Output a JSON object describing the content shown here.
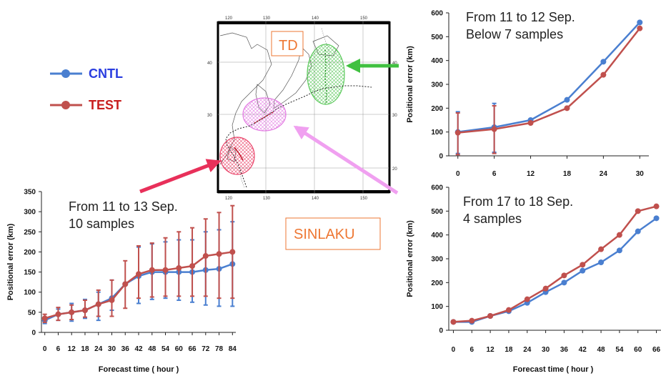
{
  "legend": {
    "items": [
      {
        "label": "CNTL",
        "color": "#4a7fd0",
        "text_color": "#2a3de0"
      },
      {
        "label": "TEST",
        "color": "#c0504d",
        "text_color": "#c81e1e"
      }
    ]
  },
  "map": {
    "lon_ticks_top": [
      "120",
      "130",
      "140",
      "150"
    ],
    "lon_ticks_bottom": [
      "120",
      "130",
      "140",
      "150"
    ],
    "lat_ticks_left": [
      "40",
      "30"
    ],
    "lat_ticks_right": [
      "40",
      "30",
      "20"
    ],
    "labels": {
      "td": "TD",
      "storm": "SINLAKU"
    },
    "colors": {
      "red_circle": "#e8305a",
      "magenta_circle": "#e070e0",
      "green_circle": "#40c040",
      "td_box": "#ee7733"
    }
  },
  "chart_data": [
    {
      "id": "chart-11-13",
      "type": "line",
      "annotation": [
        "From 11 to 13 Sep.",
        "10 samples"
      ],
      "xlabel": "Forecast time ( hour )",
      "ylabel": "Positional error (km)",
      "x": [
        0,
        6,
        12,
        18,
        24,
        30,
        36,
        42,
        48,
        54,
        60,
        66,
        72,
        78,
        84
      ],
      "ylim": [
        0,
        350
      ],
      "yticks": [
        0,
        50,
        100,
        150,
        200,
        250,
        300,
        350
      ],
      "series": [
        {
          "name": "CNTL",
          "color": "#4a7fd0",
          "values": [
            30,
            45,
            50,
            55,
            70,
            85,
            120,
            140,
            150,
            150,
            150,
            150,
            155,
            158,
            170
          ],
          "error": [
            [
              22,
              38
            ],
            [
              30,
              58
            ],
            [
              28,
              72
            ],
            [
              35,
              82
            ],
            [
              30,
              100
            ],
            [
              55,
              130
            ],
            [
              null,
              null
            ],
            [
              72,
              212
            ],
            [
              82,
              220
            ],
            [
              85,
              225
            ],
            [
              80,
              230
            ],
            [
              75,
              230
            ],
            [
              68,
              250
            ],
            [
              65,
              255
            ],
            [
              65,
              275
            ]
          ]
        },
        {
          "name": "TEST",
          "color": "#c0504d",
          "values": [
            35,
            45,
            50,
            55,
            70,
            80,
            120,
            145,
            155,
            155,
            160,
            165,
            190,
            195,
            200
          ],
          "error": [
            [
              25,
              45
            ],
            [
              30,
              62
            ],
            [
              32,
              68
            ],
            [
              38,
              80
            ],
            [
              40,
              105
            ],
            [
              40,
              130
            ],
            [
              60,
              178
            ],
            [
              85,
              215
            ],
            [
              88,
              222
            ],
            [
              90,
              235
            ],
            [
              90,
              250
            ],
            [
              90,
              260
            ],
            [
              90,
              282
            ],
            [
              85,
              298
            ],
            [
              85,
              315
            ]
          ]
        }
      ]
    },
    {
      "id": "chart-11-12",
      "type": "line",
      "annotation": [
        "From 11 to 12 Sep.",
        "Below 7 samples"
      ],
      "xlabel": "",
      "ylabel": "Positional error (km)",
      "x": [
        0,
        6,
        12,
        18,
        24,
        30
      ],
      "ylim": [
        0,
        600
      ],
      "yticks": [
        0,
        100,
        200,
        300,
        400,
        500,
        600
      ],
      "series": [
        {
          "name": "CNTL",
          "color": "#4a7fd0",
          "values": [
            100,
            120,
            150,
            235,
            395,
            560
          ],
          "error": [
            [
              10,
              185
            ],
            [
              15,
              220
            ],
            [
              null,
              null
            ],
            [
              null,
              null
            ],
            [
              null,
              null
            ],
            [
              null,
              null
            ]
          ]
        },
        {
          "name": "TEST",
          "color": "#c0504d",
          "values": [
            97,
            112,
            138,
            200,
            340,
            535
          ],
          "error": [
            [
              5,
              180
            ],
            [
              10,
              210
            ],
            [
              null,
              null
            ],
            [
              null,
              null
            ],
            [
              null,
              null
            ],
            [
              null,
              null
            ]
          ]
        }
      ]
    },
    {
      "id": "chart-17-18",
      "type": "line",
      "annotation": [
        "From 17 to 18 Sep.",
        "4 samples"
      ],
      "xlabel": "Forecast time ( hour )",
      "ylabel": "Positional error (km)",
      "x": [
        0,
        6,
        12,
        18,
        24,
        30,
        36,
        42,
        48,
        54,
        60,
        66
      ],
      "ylim": [
        0,
        600
      ],
      "yticks": [
        0,
        100,
        200,
        300,
        400,
        500,
        600
      ],
      "series": [
        {
          "name": "CNTL",
          "color": "#4a7fd0",
          "values": [
            35,
            35,
            60,
            80,
            115,
            160,
            200,
            250,
            285,
            335,
            415,
            470
          ]
        },
        {
          "name": "TEST",
          "color": "#c0504d",
          "values": [
            35,
            40,
            60,
            85,
            130,
            175,
            230,
            275,
            340,
            400,
            500,
            520
          ]
        }
      ]
    }
  ]
}
